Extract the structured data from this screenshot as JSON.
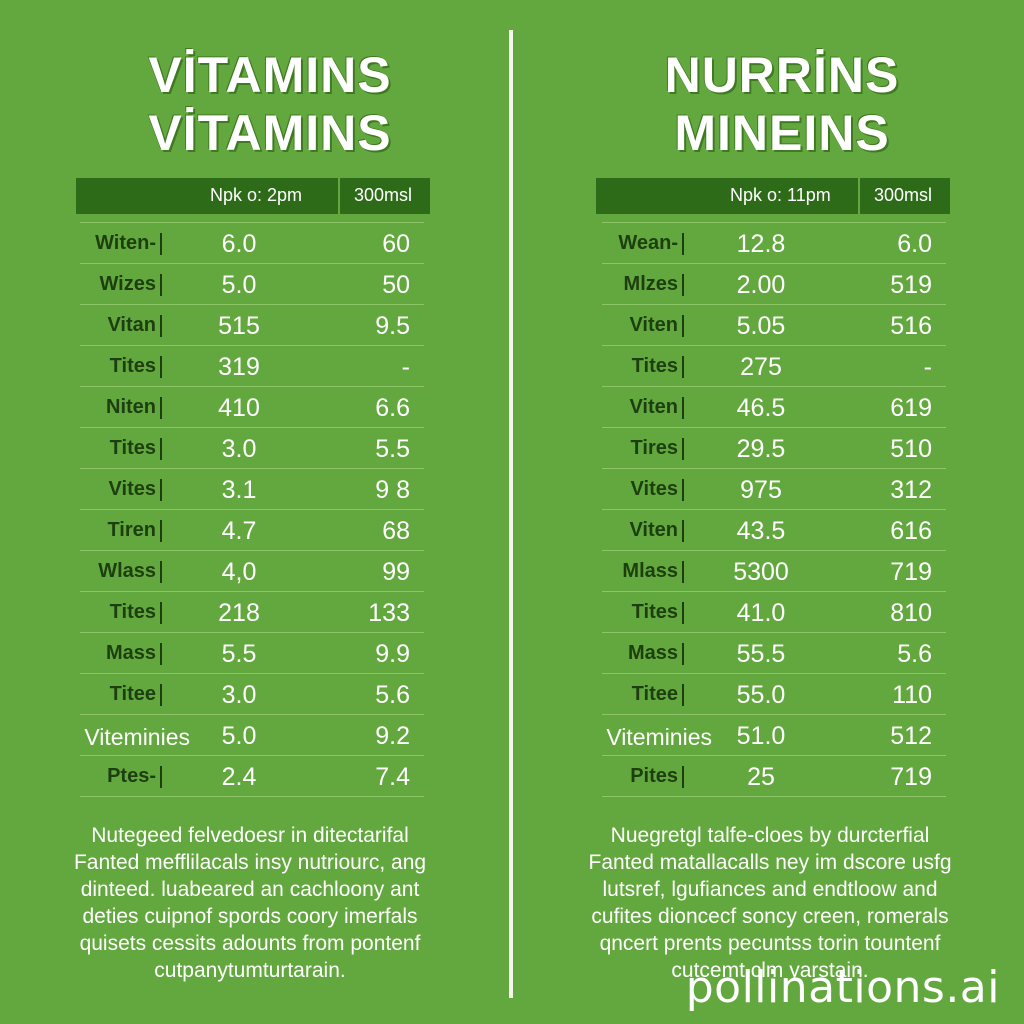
{
  "left": {
    "title_line1": "VİTAMINS",
    "title_line2": "VİTAMINS",
    "header_col1": "Npk o: 2pm",
    "header_col2": "300msl",
    "rows": [
      {
        "label": "Witen-",
        "v1": "6.0",
        "v2": "60"
      },
      {
        "label": "Wizes",
        "v1": "5.0",
        "v2": "50"
      },
      {
        "label": "Vitan",
        "v1": "515",
        "v2": "9.5"
      },
      {
        "label": "Tites",
        "v1": "319",
        "v2": "-"
      },
      {
        "label": "Niten",
        "v1": "410",
        "v2": "6.6"
      },
      {
        "label": "Tites",
        "v1": "3.0",
        "v2": "5.5"
      },
      {
        "label": "Vites",
        "v1": "3.1",
        "v2": "9 8"
      },
      {
        "label": "Tiren",
        "v1": "4.7",
        "v2": "68"
      },
      {
        "label": "Wlass",
        "v1": "4,0",
        "v2": "99"
      },
      {
        "label": "Tites",
        "v1": "218",
        "v2": "133"
      },
      {
        "label": "Mass",
        "v1": "5.5",
        "v2": "9.9"
      },
      {
        "label": "Titee",
        "v1": "3.0",
        "v2": "5.6"
      },
      {
        "label": "Viteminies",
        "v1": "5.0",
        "v2": "9.2"
      },
      {
        "label": "Ptes-",
        "v1": "2.4",
        "v2": "7.4"
      }
    ],
    "footer": [
      "Nutegeed felvedoesr in ditectarifal",
      "Fanted mefflilacals insy nutriourc, ang",
      "dinteed. luabeared an cachloony ant",
      "deties cuipnof spords coory imerfals",
      "quisets cessits adounts from pontenf",
      "cutpanytumturtarain."
    ]
  },
  "right": {
    "title_line1": "NURRİNS",
    "title_line2": "MINEINS",
    "header_col1": "Npk o: 11pm",
    "header_col2": "300msl",
    "rows": [
      {
        "label": "Wean-",
        "v1": "12.8",
        "v2": "6.0"
      },
      {
        "label": "Mlzes",
        "v1": "2.00",
        "v2": "519"
      },
      {
        "label": "Viten",
        "v1": "5.05",
        "v2": "516"
      },
      {
        "label": "Tites",
        "v1": "275",
        "v2": "-"
      },
      {
        "label": "Viten",
        "v1": "46.5",
        "v2": "619"
      },
      {
        "label": "Tires",
        "v1": "29.5",
        "v2": "510"
      },
      {
        "label": "Vites",
        "v1": "975",
        "v2": "312"
      },
      {
        "label": "Viten",
        "v1": "43.5",
        "v2": "616"
      },
      {
        "label": "Mlass",
        "v1": "5300",
        "v2": "719"
      },
      {
        "label": "Tites",
        "v1": "41.0",
        "v2": "810"
      },
      {
        "label": "Mass",
        "v1": "55.5",
        "v2": "5.6"
      },
      {
        "label": "Titee",
        "v1": "55.0",
        "v2": "110"
      },
      {
        "label": "Viteminies",
        "v1": "51.0",
        "v2": "512"
      },
      {
        "label": "Pites",
        "v1": "25",
        "v2": "719"
      }
    ],
    "footer": [
      "Nuegretgl talfe-cloes by durcterfial",
      "Fanted matallacalls ney im dscore usfg",
      "lutsref, lgufiances and endtloow and",
      "cufites dioncecf soncy creen, romerals",
      "qncert prents pecuntss torin tountenf",
      "cutcemt clm yarstain."
    ]
  },
  "watermark": "pollinations.ai"
}
